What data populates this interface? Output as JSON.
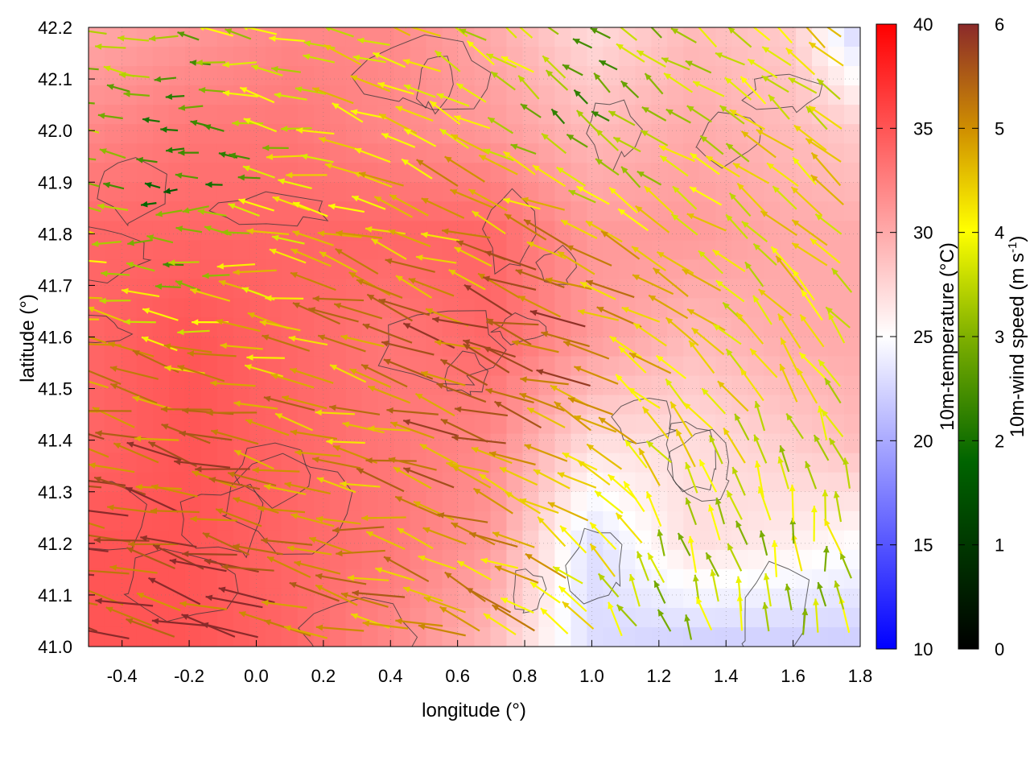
{
  "chart_data": {
    "type": "heatmap",
    "subtype": "temperature field with wind vectors and contours",
    "xlabel": "longitude (°)",
    "ylabel": "latitude (°)",
    "xlim": [
      -0.5,
      1.8
    ],
    "ylim": [
      41.0,
      42.2
    ],
    "x_ticks": [
      "-0.4",
      "-0.2",
      "0.0",
      "0.2",
      "0.4",
      "0.6",
      "0.8",
      "1.0",
      "1.2",
      "1.4",
      "1.6",
      "1.8"
    ],
    "y_ticks": [
      "41.0",
      "41.1",
      "41.2",
      "41.3",
      "41.4",
      "41.5",
      "41.6",
      "41.7",
      "41.8",
      "41.9",
      "42.0",
      "42.1",
      "42.2"
    ],
    "grid": true,
    "temperature_colorbar": {
      "label": "10m-temperature (°C)",
      "range": [
        10,
        40
      ],
      "ticks": [
        "10",
        "15",
        "20",
        "25",
        "30",
        "35",
        "40"
      ],
      "colors": [
        "#0000ff",
        "#ffffff",
        "#ff0000"
      ]
    },
    "wind_colorbar": {
      "label_main": "10m-wind speed (m s",
      "label_sup": "-1",
      "label_end": ")",
      "range": [
        0,
        6
      ],
      "ticks": [
        "0",
        "1",
        "2",
        "3",
        "4",
        "5",
        "6"
      ],
      "colors": [
        "#000000",
        "#006400",
        "#7fb000",
        "#ffff00",
        "#d09000",
        "#8b2a2a"
      ]
    },
    "temperature_grid": {
      "lon": [
        -0.5,
        -0.2,
        0.1,
        0.4,
        0.7,
        1.0,
        1.3,
        1.6,
        1.8
      ],
      "lat": [
        42.2,
        42.0,
        41.8,
        41.6,
        41.4,
        41.2,
        41.0
      ],
      "values": [
        [
          30,
          31,
          32,
          32,
          30,
          27,
          29,
          28,
          22
        ],
        [
          32,
          33,
          33,
          32,
          31,
          29,
          30,
          29,
          28
        ],
        [
          34,
          34,
          34,
          34,
          34,
          31,
          31,
          30,
          30
        ],
        [
          34,
          35,
          34,
          33,
          34,
          31,
          29,
          30,
          30
        ],
        [
          34,
          35,
          34,
          33,
          32,
          27,
          27,
          28,
          29
        ],
        [
          35,
          35,
          34,
          33,
          31,
          23,
          27,
          26,
          25
        ],
        [
          35,
          35,
          34,
          32,
          29,
          23,
          22,
          22,
          22
        ]
      ]
    },
    "wind_vectors": [
      {
        "lon": -0.45,
        "lat": 41.1,
        "speed": 5.8,
        "dir_deg": 170
      },
      {
        "lon": -0.3,
        "lat": 41.2,
        "speed": 5.5,
        "dir_deg": 165
      },
      {
        "lon": 0.0,
        "lat": 41.15,
        "speed": 5.9,
        "dir_deg": 168
      },
      {
        "lon": 0.3,
        "lat": 41.3,
        "speed": 4.5,
        "dir_deg": 175
      },
      {
        "lon": 0.6,
        "lat": 41.5,
        "speed": 5.2,
        "dir_deg": 160
      },
      {
        "lon": 0.9,
        "lat": 41.6,
        "speed": 5.6,
        "dir_deg": 165
      },
      {
        "lon": 1.3,
        "lat": 41.1,
        "speed": 2.8,
        "dir_deg": 110
      },
      {
        "lon": 1.6,
        "lat": 41.1,
        "speed": 3.0,
        "dir_deg": 95
      },
      {
        "lon": 1.0,
        "lat": 42.05,
        "speed": 2.0,
        "dir_deg": 140
      },
      {
        "lon": -0.2,
        "lat": 41.9,
        "speed": 1.5,
        "dir_deg": 180
      }
    ]
  }
}
